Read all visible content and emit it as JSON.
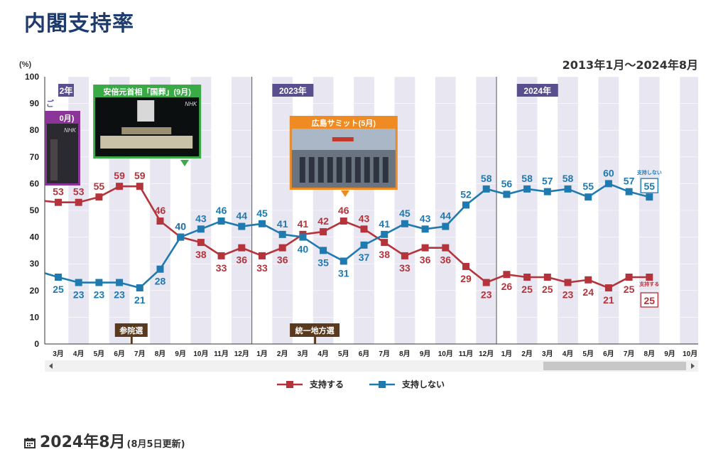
{
  "page": {
    "title": "内閣支持率",
    "period": "2013年1月～2024年8月",
    "section_heading": "2024年8月",
    "section_note": "(8月5日更新)"
  },
  "colors": {
    "support": "#b5343c",
    "nonsupport": "#1f7ab0",
    "band": "#e8e6f1",
    "yearTag": "#5a4f8e",
    "eventTag": "#5a3a1e"
  },
  "chart_data": {
    "type": "line",
    "ylabel": "(%)",
    "ylim": [
      0,
      100
    ],
    "yticks": [
      0,
      10,
      20,
      30,
      40,
      50,
      60,
      70,
      80,
      90,
      100
    ],
    "x": [
      "3月",
      "4月",
      "5月",
      "6月",
      "7月",
      "8月",
      "9月",
      "10月",
      "11月",
      "12月",
      "1月",
      "2月",
      "3月",
      "4月",
      "5月",
      "6月",
      "7月",
      "8月",
      "9月",
      "10月",
      "11月",
      "12月",
      "1月",
      "2月",
      "3月",
      "4月",
      "5月",
      "6月",
      "7月",
      "8月",
      "9月",
      "10月"
    ],
    "series": [
      {
        "name": "支持する",
        "end_label": "支持する",
        "values": [
          53,
          53,
          55,
          59,
          59,
          46,
          40,
          38,
          33,
          36,
          33,
          36,
          41,
          42,
          46,
          43,
          38,
          33,
          36,
          36,
          29,
          23,
          26,
          25,
          25,
          23,
          24,
          21,
          25,
          25,
          null,
          null
        ]
      },
      {
        "name": "支持しない",
        "end_label": "支持しない",
        "values": [
          25,
          23,
          23,
          23,
          21,
          28,
          40,
          43,
          46,
          44,
          45,
          41,
          40,
          35,
          31,
          37,
          41,
          45,
          43,
          44,
          52,
          58,
          56,
          58,
          57,
          58,
          55,
          60,
          57,
          55,
          null,
          null
        ]
      }
    ],
    "year_tags": [
      {
        "label": "2年",
        "index": -0.5
      },
      {
        "label": "2023年",
        "index": 10
      },
      {
        "label": "2024年",
        "index": 22
      }
    ],
    "year_dividers": [
      9.5,
      21.5
    ],
    "event_tags": [
      {
        "label": "参院選",
        "index": 4
      },
      {
        "label": "統一地方選",
        "index": 13
      }
    ],
    "photo_callouts": [
      {
        "caption": "安倍元首相「国葬」(9月)",
        "photo_mark": "NHK",
        "index": 6,
        "color": "#3aaa46"
      },
      {
        "caption": "広島サミット(5月)",
        "photo_mark": "",
        "index": 14,
        "color": "#f08a22"
      },
      {
        "caption": "0月)",
        "photo_mark": "NHK",
        "index": -0.5,
        "color": "#8a3597"
      }
    ],
    "left_edge_labels": {
      "support_partial": "",
      "nonsupport_partial": "",
      "y90_marker": "ご"
    },
    "legend": [
      "支持する",
      "支持しない"
    ],
    "legend_position": "bottom",
    "grid": true
  }
}
